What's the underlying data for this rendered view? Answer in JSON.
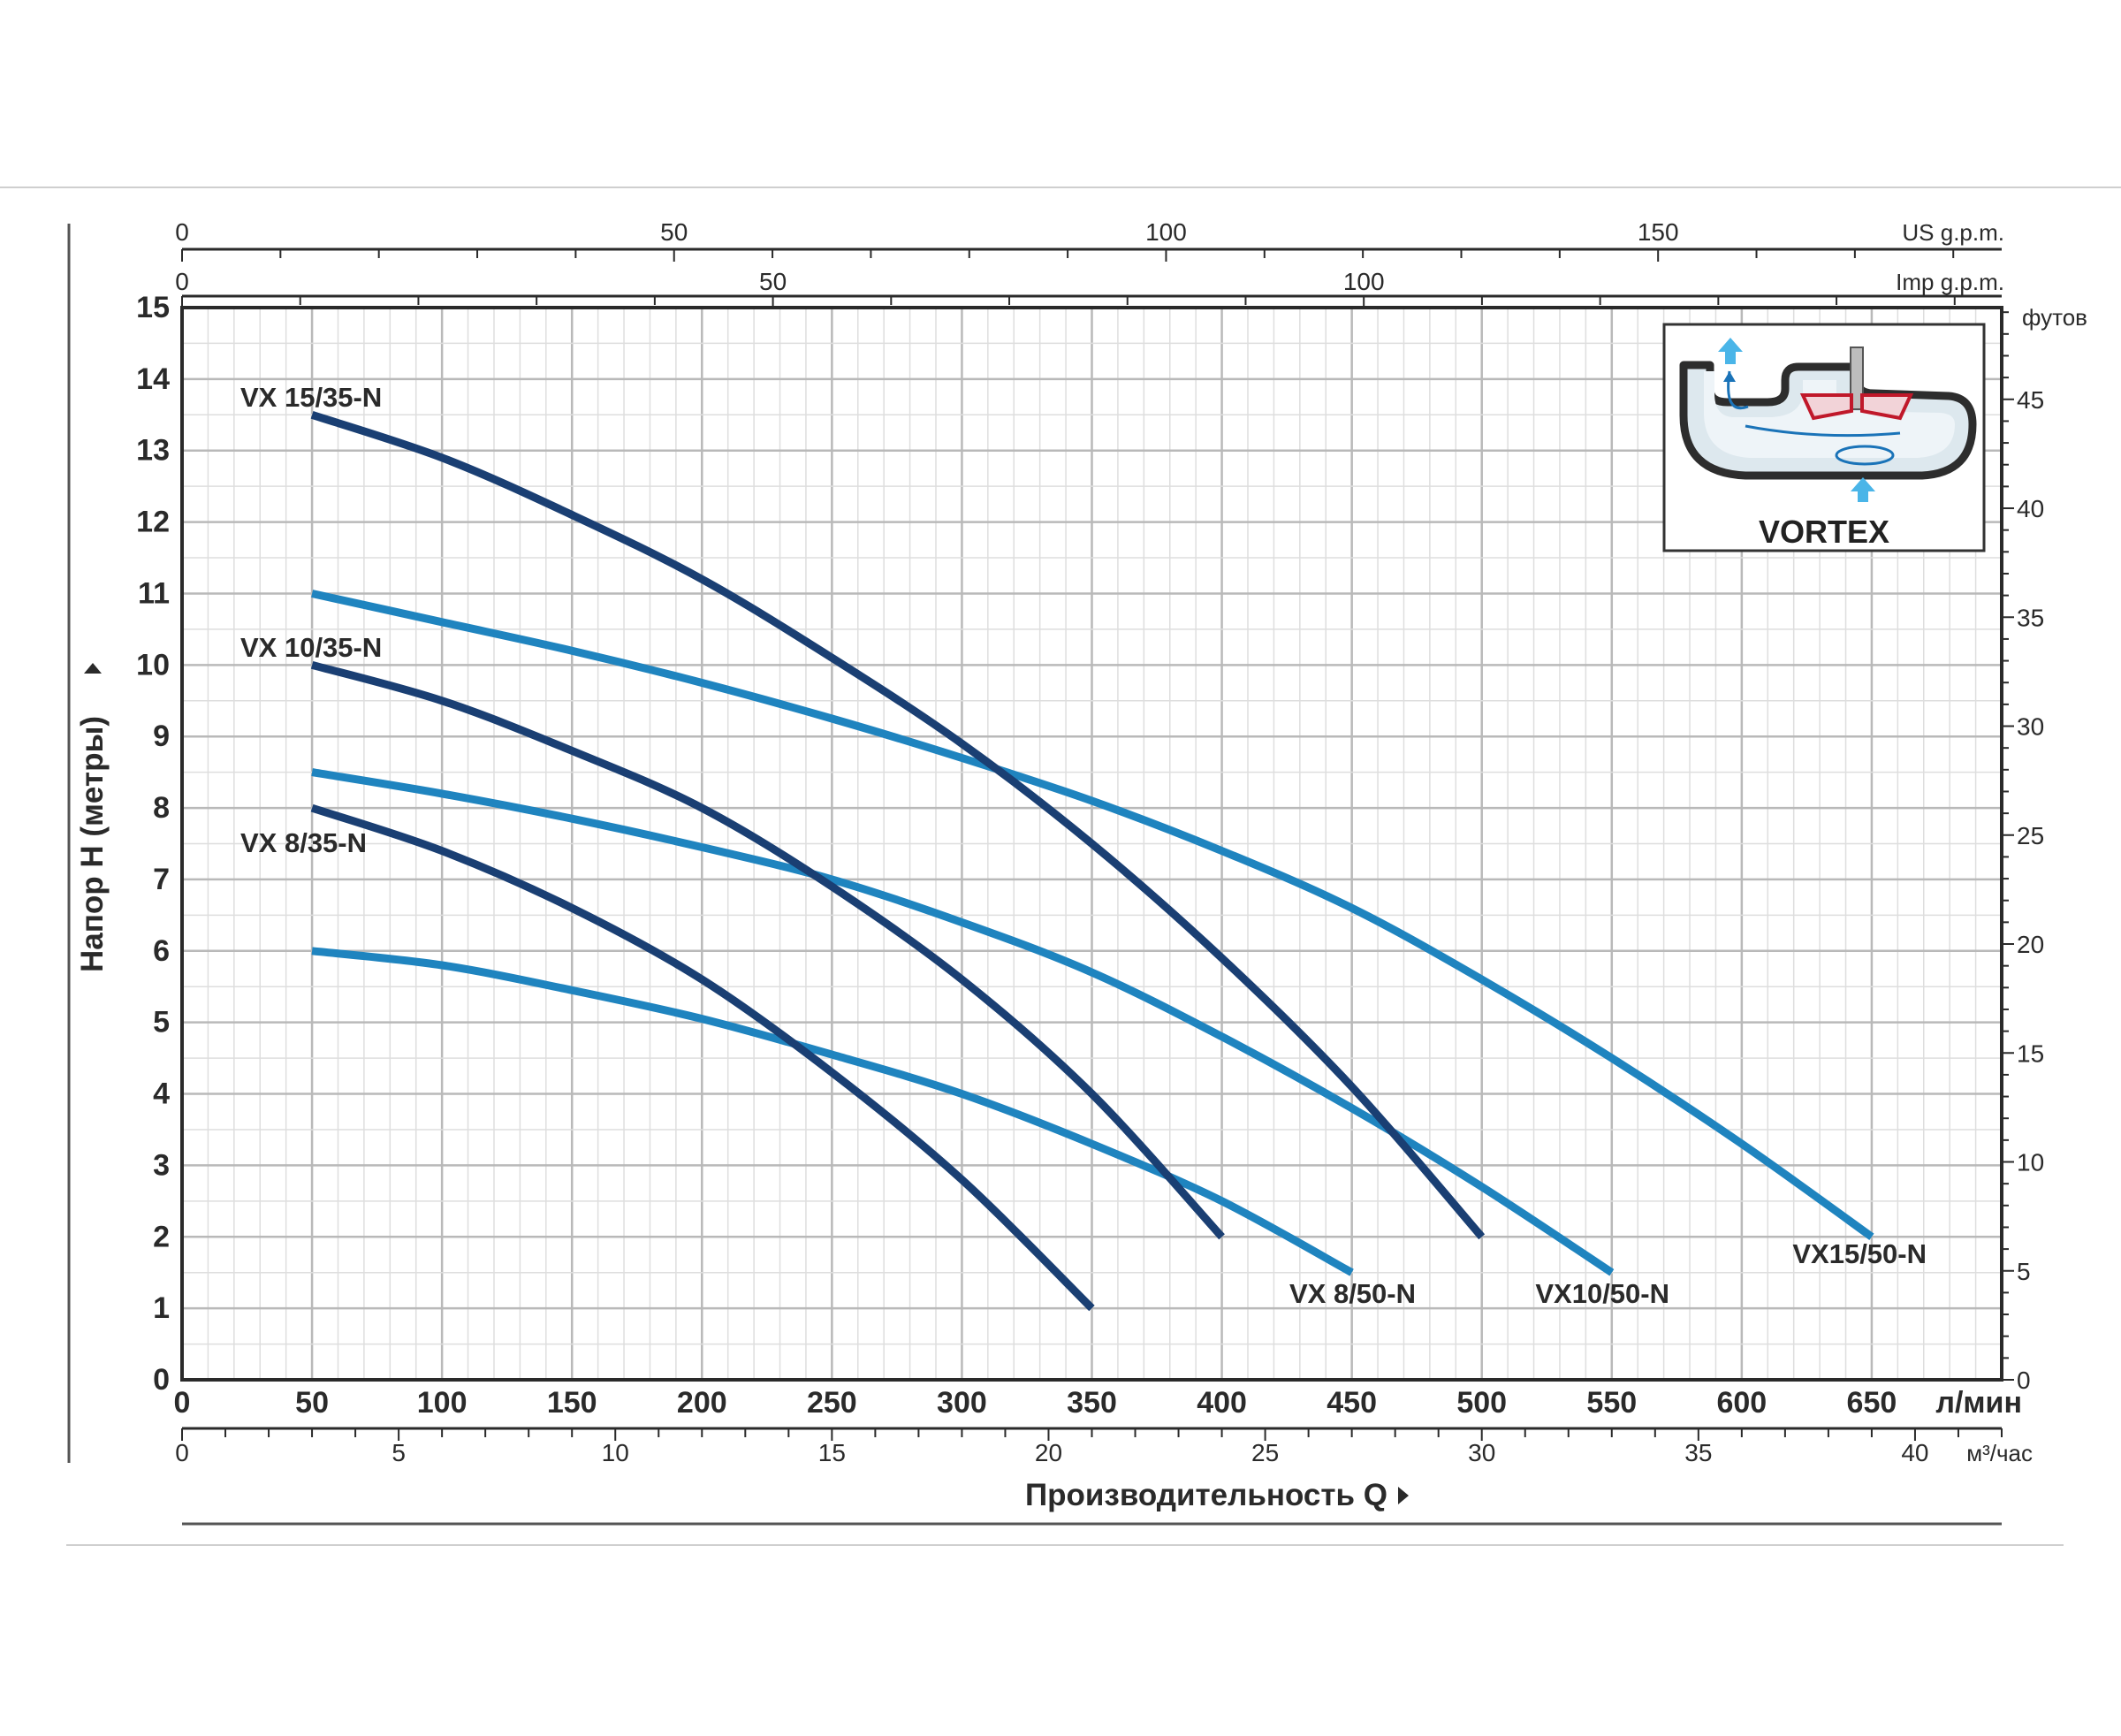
{
  "chart_data": {
    "type": "line",
    "xlabel": "Производительность  Q",
    "ylabel": "Напор H (метры)",
    "x_unit": "л/мин",
    "xlim": [
      0,
      700
    ],
    "ylim": [
      0,
      15
    ],
    "x_ticks": [
      0,
      50,
      100,
      150,
      200,
      250,
      300,
      350,
      400,
      450,
      500,
      550,
      600,
      650
    ],
    "y_ticks": [
      0,
      1,
      2,
      3,
      4,
      5,
      6,
      7,
      8,
      9,
      10,
      11,
      12,
      13,
      14,
      15
    ],
    "grid": true,
    "secondary_axes": {
      "m3h": {
        "unit": "м³/час",
        "max": 42,
        "labels": [
          0,
          5,
          10,
          15,
          20,
          25,
          30,
          35,
          40
        ],
        "minor_step": 1
      },
      "us_gpm": {
        "unit": "US g.p.m.",
        "max": 184.92,
        "labels": [
          0,
          50,
          100,
          150
        ],
        "minor_step": 10
      },
      "imp_gpm": {
        "unit": "Imp g.p.m.",
        "max": 153.98,
        "labels": [
          0,
          50,
          100
        ],
        "minor_step": 10
      },
      "feet": {
        "unit": "футов",
        "max": 49.21,
        "labels": [
          0,
          5,
          10,
          15,
          20,
          25,
          30,
          35,
          40,
          45
        ]
      }
    },
    "series": [
      {
        "name": "VX 15/35-N",
        "color": "#1a3f73",
        "x": [
          50,
          100,
          150,
          200,
          250,
          300,
          350,
          400,
          450,
          500
        ],
        "y": [
          13.5,
          12.9,
          12.1,
          11.2,
          10.1,
          8.9,
          7.5,
          5.9,
          4.1,
          2.0
        ]
      },
      {
        "name": "VX 10/35-N",
        "color": "#1a3f73",
        "x": [
          50,
          100,
          150,
          200,
          250,
          300,
          350,
          400
        ],
        "y": [
          10.0,
          9.5,
          8.8,
          8.0,
          6.9,
          5.6,
          4.0,
          2.0
        ]
      },
      {
        "name": "VX 8/35-N",
        "color": "#1a3f73",
        "x": [
          50,
          100,
          150,
          200,
          250,
          300,
          350
        ],
        "y": [
          8.0,
          7.4,
          6.6,
          5.6,
          4.3,
          2.8,
          1.0
        ]
      },
      {
        "name": "VX15/50-N",
        "color": "#1f84bf",
        "x": [
          50,
          100,
          150,
          200,
          250,
          300,
          350,
          400,
          450,
          500,
          550,
          600,
          650
        ],
        "y": [
          11.0,
          10.6,
          10.2,
          9.75,
          9.25,
          8.7,
          8.1,
          7.4,
          6.6,
          5.6,
          4.5,
          3.3,
          2.0
        ]
      },
      {
        "name": "VX10/50-N",
        "color": "#1f84bf",
        "x": [
          50,
          100,
          150,
          200,
          250,
          300,
          350,
          400,
          450,
          500,
          550
        ],
        "y": [
          8.5,
          8.2,
          7.85,
          7.45,
          7.0,
          6.4,
          5.7,
          4.8,
          3.8,
          2.7,
          1.5
        ]
      },
      {
        "name": "VX 8/50-N",
        "color": "#1f84bf",
        "x": [
          50,
          100,
          150,
          200,
          250,
          300,
          350,
          400,
          450
        ],
        "y": [
          6.0,
          5.8,
          5.45,
          5.05,
          4.55,
          4.0,
          3.3,
          2.5,
          1.5
        ]
      }
    ]
  },
  "inset": {
    "title": "VORTEX"
  }
}
